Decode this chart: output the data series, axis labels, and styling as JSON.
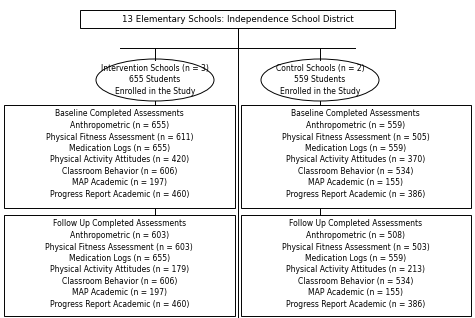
{
  "title_box": "13 Elementary Schools: Independence School District",
  "intervention_ellipse": "Intervention Schools (n = 3)\n655 Students\nEnrolled in the Study",
  "control_ellipse": "Control Schools (n = 2)\n559 Students\nEnrolled in the Study",
  "baseline_left_title": "Baseline Completed Assessments",
  "baseline_left_lines": [
    "Anthropometric (n = 655)",
    "Physical Fitness Assessment (n = 611)",
    "Medication Logs (n = 655)",
    "Physical Activity Attitudes (n = 420)",
    "Classroom Behavior (n = 606)",
    "MAP Academic (n = 197)",
    "Progress Report Academic (n = 460)"
  ],
  "baseline_right_title": "Baseline Completed Assessments",
  "baseline_right_lines": [
    "Anthropometric (n = 559)",
    "Physical Fitness Assessment (n = 505)",
    "Medication Logs (n = 559)",
    "Physical Activity Attitudes (n = 370)",
    "Classroom Behavior (n = 534)",
    "MAP Academic (n = 155)",
    "Progress Report Academic (n = 386)"
  ],
  "followup_left_title": "Follow Up Completed Assessments",
  "followup_left_lines": [
    "Anthropometric (n = 603)",
    "Physical Fitness Assessment (n = 603)",
    "Medication Logs (n = 655)",
    "Physical Activity Attitudes (n = 179)",
    "Classroom Behavior (n = 606)",
    "MAP Academic (n = 197)",
    "Progress Report Academic (n = 460)"
  ],
  "followup_right_title": "Follow Up Completed Assessments",
  "followup_right_lines": [
    "Anthropometric (n = 508)",
    "Physical Fitness Assessment (n = 503)",
    "Medication Logs (n = 559)",
    "Physical Activity Attitudes (n = 213)",
    "Classroom Behavior (n = 534)",
    "MAP Academic (n = 155)",
    "Progress Report Academic (n = 386)"
  ],
  "bg_color": "#ffffff",
  "box_edge_color": "#000000",
  "box_face_color": "#ffffff",
  "font_size": 5.5,
  "title_font_size": 6.2
}
